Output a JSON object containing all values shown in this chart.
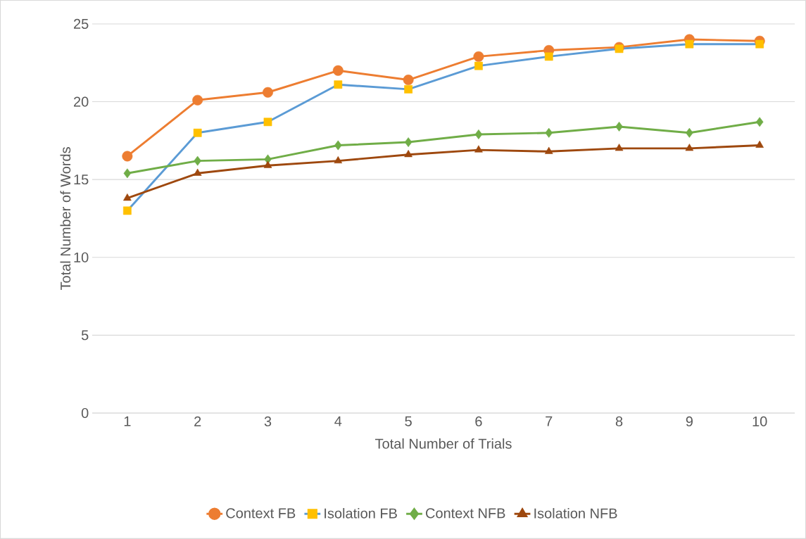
{
  "chart_data": {
    "type": "line",
    "xlabel": "Total Number of Trials",
    "ylabel": "Total Number of Words",
    "categories": [
      "1",
      "2",
      "3",
      "4",
      "5",
      "6",
      "7",
      "8",
      "9",
      "10"
    ],
    "series": [
      {
        "name": "Context FB",
        "color": "#ed7d31",
        "marker": "circle",
        "values": [
          16.5,
          20.1,
          20.6,
          22.0,
          21.4,
          22.9,
          23.3,
          23.5,
          24.0,
          23.9
        ]
      },
      {
        "name": "Isolation FB",
        "color": "#5b9bd5",
        "marker": "square",
        "colors": [
          "#ffc000",
          "#ffc000",
          "#ffc000",
          "#ffc000",
          "#ffc000",
          "#ffc000",
          "#ffc000",
          "#ffc000",
          "#ffc000",
          "#ffc000"
        ],
        "values": [
          13.0,
          18.0,
          18.7,
          21.1,
          20.8,
          22.3,
          22.9,
          23.4,
          23.7,
          23.7
        ]
      },
      {
        "name": "Context NFB",
        "color": "#70ad47",
        "marker": "diamond",
        "values": [
          15.4,
          16.2,
          16.3,
          17.2,
          17.4,
          17.9,
          18.0,
          18.4,
          18.0,
          18.7
        ]
      },
      {
        "name": "Isolation NFB",
        "color": "#9e480e",
        "marker": "triangle",
        "values": [
          13.8,
          15.4,
          15.9,
          16.2,
          16.6,
          16.9,
          16.8,
          17.0,
          17.0,
          17.2
        ]
      }
    ],
    "ylim": [
      0,
      25
    ],
    "yticks": [
      0,
      5,
      10,
      15,
      20,
      25
    ],
    "grid": "y",
    "legend": "bottom",
    "line_style": "solid"
  }
}
